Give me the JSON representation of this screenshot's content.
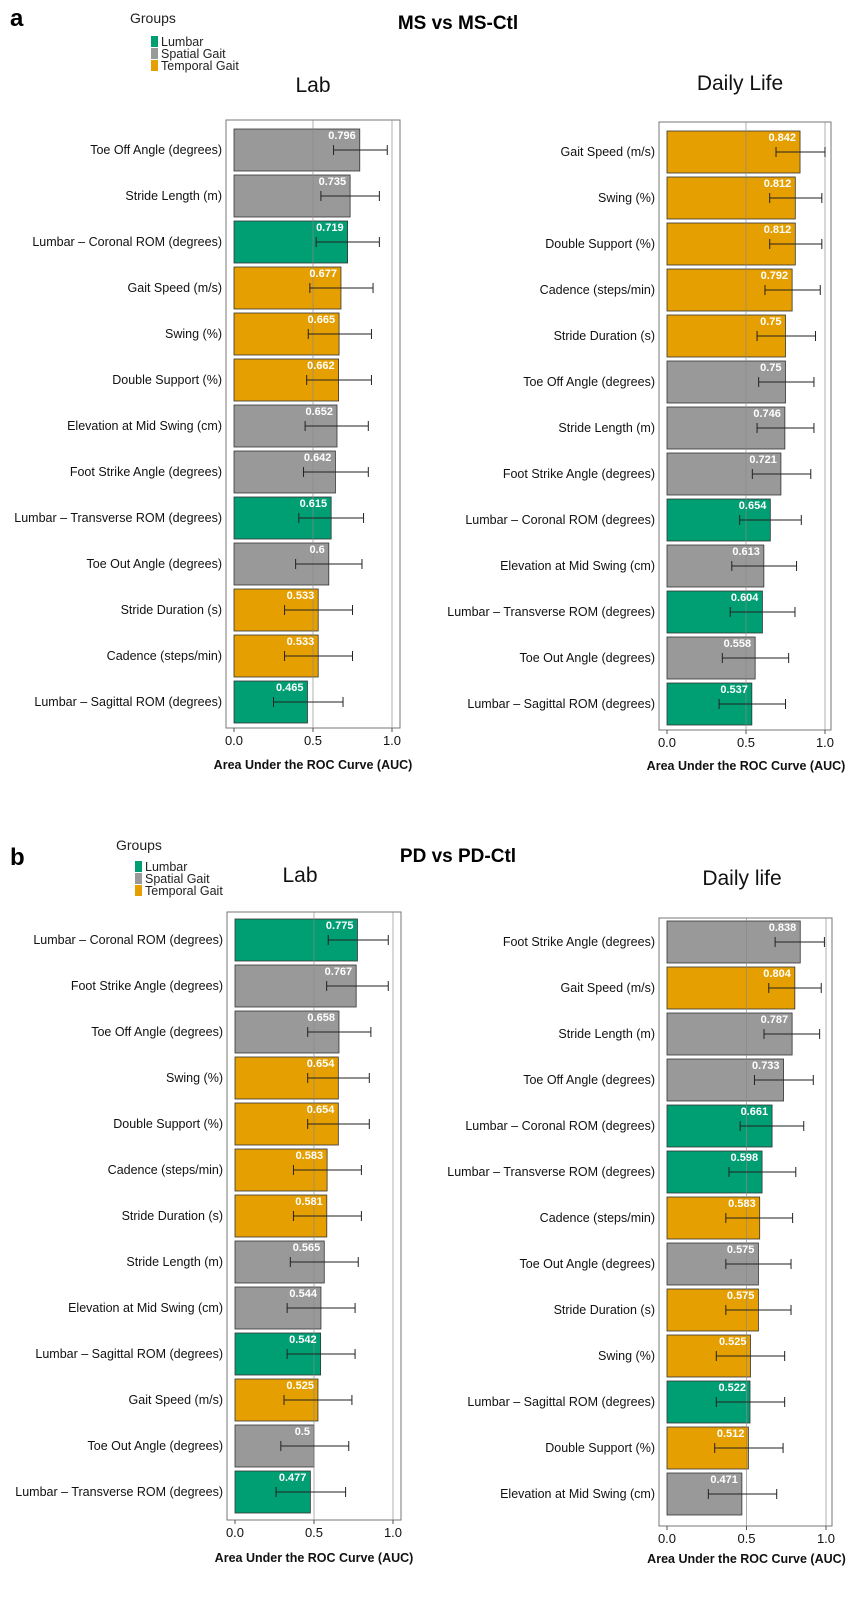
{
  "panels": [
    {
      "letter": "a",
      "title": "MS vs MS-Ctl",
      "legend": {
        "title": "Groups",
        "items": [
          {
            "label": "Lumbar",
            "color": "#009E73"
          },
          {
            "label": "Spatial Gait",
            "color": "#999999"
          },
          {
            "label": "Temporal Gait",
            "color": "#E69F00"
          }
        ]
      }
    },
    {
      "letter": "b",
      "title": "PD vs PD-Ctl",
      "legend": {
        "title": "Groups",
        "items": [
          {
            "label": "Lumbar",
            "color": "#009E73"
          },
          {
            "label": "Spatial Gait",
            "color": "#999999"
          },
          {
            "label": "Temporal Gait",
            "color": "#E69F00"
          }
        ]
      }
    }
  ],
  "chart_data": [
    {
      "type": "bar",
      "orientation": "horizontal",
      "title": "Lab",
      "xlabel": "Area Under the ROC Curve (AUC)",
      "xlim": [
        0,
        1
      ],
      "xticks": [
        "0.0",
        "0.5",
        "1.0"
      ],
      "grid": "vertical lines at 0.5 and 1.0",
      "bars": [
        {
          "label": "Toe Off Angle (degrees)",
          "value": 0.796,
          "value_text": "0.796",
          "group": "Spatial Gait",
          "ci": [
            0.63,
            0.97
          ]
        },
        {
          "label": "Stride Length (m)",
          "value": 0.735,
          "value_text": "0.735",
          "group": "Spatial Gait",
          "ci": [
            0.55,
            0.92
          ]
        },
        {
          "label": "Lumbar – Coronal ROM (degrees)",
          "value": 0.719,
          "value_text": "0.719",
          "group": "Lumbar",
          "ci": [
            0.52,
            0.92
          ]
        },
        {
          "label": "Gait Speed (m/s)",
          "value": 0.677,
          "value_text": "0.677",
          "group": "Temporal Gait",
          "ci": [
            0.48,
            0.88
          ]
        },
        {
          "label": "Swing (%)",
          "value": 0.665,
          "value_text": "0.665",
          "group": "Temporal Gait",
          "ci": [
            0.47,
            0.87
          ]
        },
        {
          "label": "Double Support (%)",
          "value": 0.662,
          "value_text": "0.662",
          "group": "Temporal Gait",
          "ci": [
            0.46,
            0.87
          ]
        },
        {
          "label": "Elevation at Mid Swing (cm)",
          "value": 0.652,
          "value_text": "0.652",
          "group": "Spatial Gait",
          "ci": [
            0.45,
            0.85
          ]
        },
        {
          "label": "Foot Strike Angle (degrees)",
          "value": 0.642,
          "value_text": "0.642",
          "group": "Spatial Gait",
          "ci": [
            0.44,
            0.85
          ]
        },
        {
          "label": "Lumbar – Transverse ROM (degrees)",
          "value": 0.615,
          "value_text": "0.615",
          "group": "Lumbar",
          "ci": [
            0.41,
            0.82
          ]
        },
        {
          "label": "Toe Out Angle (degrees)",
          "value": 0.6,
          "value_text": "0.6",
          "group": "Spatial Gait",
          "ci": [
            0.39,
            0.81
          ]
        },
        {
          "label": "Stride Duration (s)",
          "value": 0.533,
          "value_text": "0.533",
          "group": "Temporal Gait",
          "ci": [
            0.32,
            0.75
          ]
        },
        {
          "label": "Cadence (steps/min)",
          "value": 0.533,
          "value_text": "0.533",
          "group": "Temporal Gait",
          "ci": [
            0.32,
            0.75
          ]
        },
        {
          "label": "Lumbar – Sagittal ROM (degrees)",
          "value": 0.465,
          "value_text": "0.465",
          "group": "Lumbar",
          "ci": [
            0.25,
            0.69
          ]
        }
      ]
    },
    {
      "type": "bar",
      "orientation": "horizontal",
      "title": "Daily Life",
      "xlabel": "Area Under the ROC Curve (AUC)",
      "xlim": [
        0,
        1
      ],
      "xticks": [
        "0.0",
        "0.5",
        "1.0"
      ],
      "grid": "vertical lines at 0.5 and 1.0",
      "bars": [
        {
          "label": "Gait Speed (m/s)",
          "value": 0.842,
          "value_text": "0.842",
          "group": "Temporal Gait",
          "ci": [
            0.69,
            1.0
          ]
        },
        {
          "label": "Swing (%)",
          "value": 0.812,
          "value_text": "0.812",
          "group": "Temporal Gait",
          "ci": [
            0.65,
            0.98
          ]
        },
        {
          "label": "Double Support (%)",
          "value": 0.812,
          "value_text": "0.812",
          "group": "Temporal Gait",
          "ci": [
            0.65,
            0.98
          ]
        },
        {
          "label": "Cadence (steps/min)",
          "value": 0.792,
          "value_text": "0.792",
          "group": "Temporal Gait",
          "ci": [
            0.62,
            0.97
          ]
        },
        {
          "label": "Stride Duration (s)",
          "value": 0.75,
          "value_text": "0.75",
          "group": "Temporal Gait",
          "ci": [
            0.57,
            0.94
          ]
        },
        {
          "label": "Toe Off Angle (degrees)",
          "value": 0.75,
          "value_text": "0.75",
          "group": "Spatial Gait",
          "ci": [
            0.58,
            0.93
          ]
        },
        {
          "label": "Stride Length (m)",
          "value": 0.746,
          "value_text": "0.746",
          "group": "Spatial Gait",
          "ci": [
            0.57,
            0.93
          ]
        },
        {
          "label": "Foot Strike Angle (degrees)",
          "value": 0.721,
          "value_text": "0.721",
          "group": "Spatial Gait",
          "ci": [
            0.54,
            0.91
          ]
        },
        {
          "label": "Lumbar – Coronal ROM (degrees)",
          "value": 0.654,
          "value_text": "0.654",
          "group": "Lumbar",
          "ci": [
            0.46,
            0.85
          ]
        },
        {
          "label": "Elevation at Mid Swing (cm)",
          "value": 0.613,
          "value_text": "0.613",
          "group": "Spatial Gait",
          "ci": [
            0.41,
            0.82
          ]
        },
        {
          "label": "Lumbar – Transverse ROM (degrees)",
          "value": 0.604,
          "value_text": "0.604",
          "group": "Lumbar",
          "ci": [
            0.4,
            0.81
          ]
        },
        {
          "label": "Toe Out Angle (degrees)",
          "value": 0.558,
          "value_text": "0.558",
          "group": "Spatial Gait",
          "ci": [
            0.35,
            0.77
          ]
        },
        {
          "label": "Lumbar – Sagittal ROM (degrees)",
          "value": 0.537,
          "value_text": "0.537",
          "group": "Lumbar",
          "ci": [
            0.33,
            0.75
          ]
        }
      ]
    },
    {
      "type": "bar",
      "orientation": "horizontal",
      "title": "Lab",
      "xlabel": "Area Under the ROC Curve (AUC)",
      "xlim": [
        0,
        1
      ],
      "xticks": [
        "0.0",
        "0.5",
        "1.0"
      ],
      "grid": "vertical lines at 0.5 and 1.0",
      "bars": [
        {
          "label": "Lumbar – Coronal ROM (degrees)",
          "value": 0.775,
          "value_text": "0.775",
          "group": "Lumbar",
          "ci": [
            0.59,
            0.97
          ]
        },
        {
          "label": "Foot Strike Angle (degrees)",
          "value": 0.767,
          "value_text": "0.767",
          "group": "Spatial Gait",
          "ci": [
            0.58,
            0.97
          ]
        },
        {
          "label": "Toe Off Angle (degrees)",
          "value": 0.658,
          "value_text": "0.658",
          "group": "Spatial Gait",
          "ci": [
            0.46,
            0.86
          ]
        },
        {
          "label": "Swing (%)",
          "value": 0.654,
          "value_text": "0.654",
          "group": "Temporal Gait",
          "ci": [
            0.46,
            0.85
          ]
        },
        {
          "label": "Double Support (%)",
          "value": 0.654,
          "value_text": "0.654",
          "group": "Temporal Gait",
          "ci": [
            0.46,
            0.85
          ]
        },
        {
          "label": "Cadence (steps/min)",
          "value": 0.583,
          "value_text": "0.583",
          "group": "Temporal Gait",
          "ci": [
            0.37,
            0.8
          ]
        },
        {
          "label": "Stride Duration (s)",
          "value": 0.581,
          "value_text": "0.581",
          "group": "Temporal Gait",
          "ci": [
            0.37,
            0.8
          ]
        },
        {
          "label": "Stride Length (m)",
          "value": 0.565,
          "value_text": "0.565",
          "group": "Spatial Gait",
          "ci": [
            0.35,
            0.78
          ]
        },
        {
          "label": "Elevation at Mid Swing (cm)",
          "value": 0.544,
          "value_text": "0.544",
          "group": "Spatial Gait",
          "ci": [
            0.33,
            0.76
          ]
        },
        {
          "label": "Lumbar – Sagittal ROM (degrees)",
          "value": 0.542,
          "value_text": "0.542",
          "group": "Lumbar",
          "ci": [
            0.33,
            0.76
          ]
        },
        {
          "label": "Gait Speed (m/s)",
          "value": 0.525,
          "value_text": "0.525",
          "group": "Temporal Gait",
          "ci": [
            0.31,
            0.74
          ]
        },
        {
          "label": "Toe Out Angle (degrees)",
          "value": 0.5,
          "value_text": "0.5",
          "group": "Spatial Gait",
          "ci": [
            0.29,
            0.72
          ]
        },
        {
          "label": "Lumbar – Transverse ROM (degrees)",
          "value": 0.477,
          "value_text": "0.477",
          "group": "Lumbar",
          "ci": [
            0.26,
            0.7
          ]
        }
      ]
    },
    {
      "type": "bar",
      "orientation": "horizontal",
      "title": "Daily life",
      "xlabel": "Area Under the ROC Curve (AUC)",
      "xlim": [
        0,
        1
      ],
      "xticks": [
        "0.0",
        "0.5",
        "1.0"
      ],
      "grid": "vertical lines at 0.5 and 1.0",
      "bars": [
        {
          "label": "Foot Strike Angle (degrees)",
          "value": 0.838,
          "value_text": "0.838",
          "group": "Spatial Gait",
          "ci": [
            0.68,
            0.99
          ]
        },
        {
          "label": "Gait Speed (m/s)",
          "value": 0.804,
          "value_text": "0.804",
          "group": "Temporal Gait",
          "ci": [
            0.64,
            0.97
          ]
        },
        {
          "label": "Stride Length (m)",
          "value": 0.787,
          "value_text": "0.787",
          "group": "Spatial Gait",
          "ci": [
            0.61,
            0.96
          ]
        },
        {
          "label": "Toe Off Angle (degrees)",
          "value": 0.733,
          "value_text": "0.733",
          "group": "Spatial Gait",
          "ci": [
            0.55,
            0.92
          ]
        },
        {
          "label": "Lumbar – Coronal ROM (degrees)",
          "value": 0.661,
          "value_text": "0.661",
          "group": "Lumbar",
          "ci": [
            0.46,
            0.86
          ]
        },
        {
          "label": "Lumbar – Transverse ROM (degrees)",
          "value": 0.598,
          "value_text": "0.598",
          "group": "Lumbar",
          "ci": [
            0.39,
            0.81
          ]
        },
        {
          "label": "Cadence (steps/min)",
          "value": 0.583,
          "value_text": "0.583",
          "group": "Temporal Gait",
          "ci": [
            0.37,
            0.79
          ]
        },
        {
          "label": "Toe Out Angle (degrees)",
          "value": 0.575,
          "value_text": "0.575",
          "group": "Spatial Gait",
          "ci": [
            0.37,
            0.78
          ]
        },
        {
          "label": "Stride Duration (s)",
          "value": 0.575,
          "value_text": "0.575",
          "group": "Temporal Gait",
          "ci": [
            0.37,
            0.78
          ]
        },
        {
          "label": "Swing (%)",
          "value": 0.525,
          "value_text": "0.525",
          "group": "Temporal Gait",
          "ci": [
            0.31,
            0.74
          ]
        },
        {
          "label": "Lumbar – Sagittal ROM (degrees)",
          "value": 0.522,
          "value_text": "0.522",
          "group": "Lumbar",
          "ci": [
            0.31,
            0.74
          ]
        },
        {
          "label": "Double Support (%)",
          "value": 0.512,
          "value_text": "0.512",
          "group": "Temporal Gait",
          "ci": [
            0.3,
            0.73
          ]
        },
        {
          "label": "Elevation at Mid Swing (cm)",
          "value": 0.471,
          "value_text": "0.471",
          "group": "Spatial Gait",
          "ci": [
            0.26,
            0.69
          ]
        }
      ]
    }
  ]
}
